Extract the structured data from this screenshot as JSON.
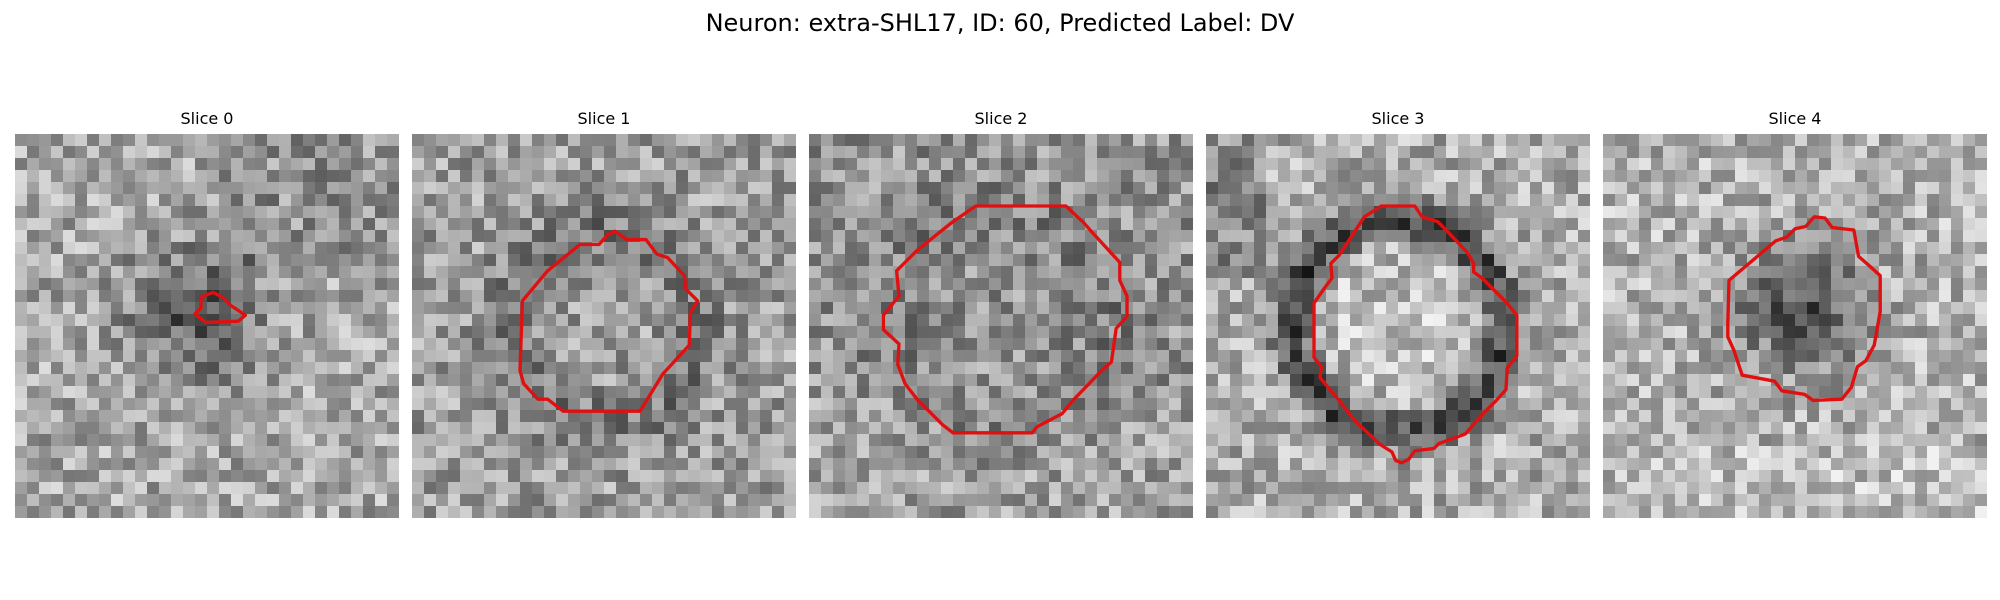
{
  "figure": {
    "title": "Neuron: extra-SHL17, ID: 60, Predicted Label: DV"
  },
  "contour_color": "#e01010",
  "panels": [
    {
      "title": "Slice 0",
      "seed": 11,
      "shading": "blob"
    },
    {
      "title": "Slice 1",
      "seed": 23,
      "shading": "ring"
    },
    {
      "title": "Slice 2",
      "seed": 37,
      "shading": "faint"
    },
    {
      "title": "Slice 3",
      "seed": 41,
      "shading": "dark-ring"
    },
    {
      "title": "Slice 4",
      "seed": 53,
      "shading": "dark-core"
    }
  ]
}
